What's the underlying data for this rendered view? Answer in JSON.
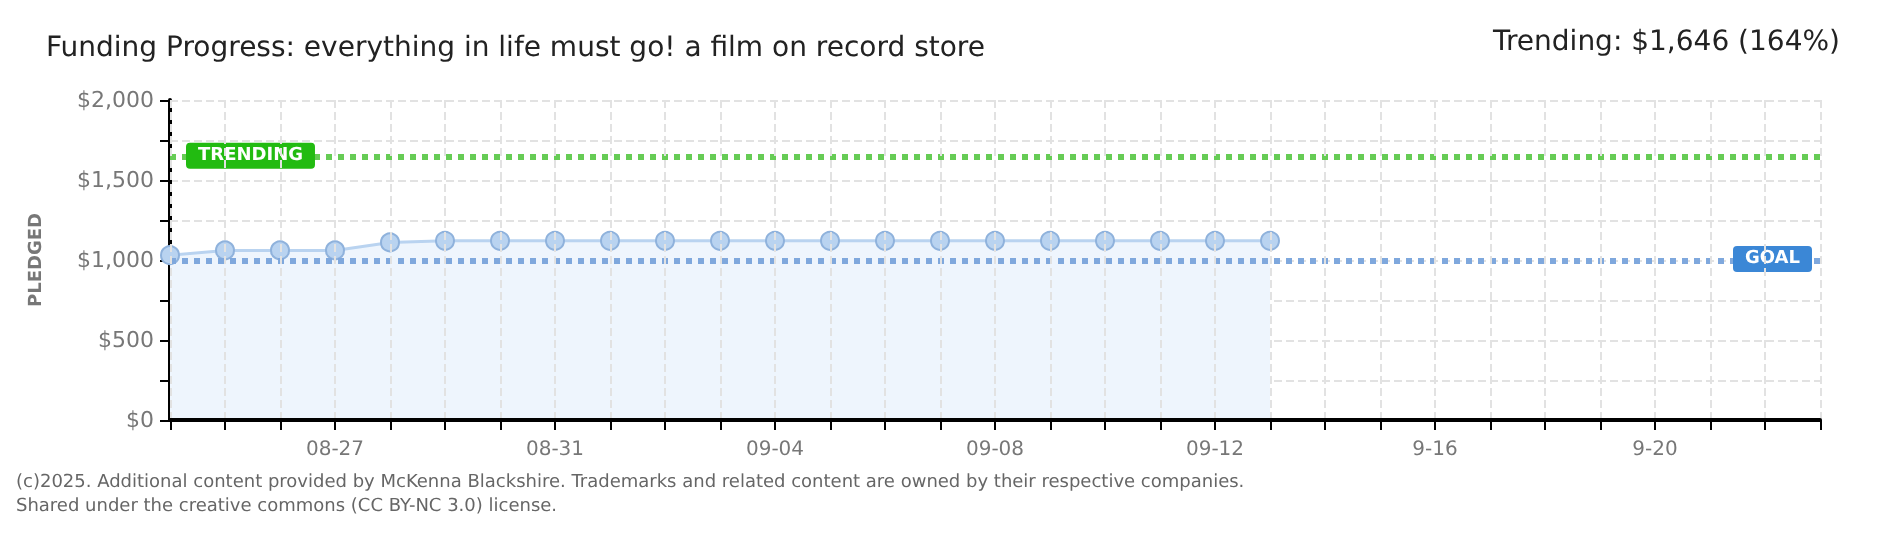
{
  "chart_data": {
    "type": "area",
    "title": "Funding Progress: everything in life must go! a film on record store",
    "ylabel": "PLEDGED",
    "annotations": [
      "Trending: $1,646 (164%)",
      "(c)2025. Additional content provided by McKenna Blackshire. Trademarks and related content are owned by their respective companies.",
      "Shared under the creative commons (CC BY-NC 3.0) license."
    ],
    "categories": [
      null,
      null,
      null,
      "08-27",
      null,
      null,
      null,
      "08-31",
      null,
      null,
      null,
      "09-04",
      null,
      null,
      null,
      "09-08",
      null,
      null,
      null,
      "09-12",
      null,
      null,
      null,
      "9-16",
      null,
      null,
      null,
      "9-20",
      null,
      null,
      null
    ],
    "series": [
      {
        "color": "#b9d3f0",
        "values": [
          1030,
          1060,
          1060,
          1060,
          1110,
          1120,
          1120,
          1120,
          1120,
          1120,
          1120,
          1120,
          1120,
          1120,
          1120,
          1120,
          1120,
          1120,
          1120,
          1120,
          1120,
          null,
          null,
          null,
          null,
          null,
          null,
          null,
          null,
          null,
          null
        ]
      }
    ],
    "ylim": [
      0,
      2000
    ],
    "yticks": [
      {
        "value": 0,
        "label": "$0"
      },
      {
        "value": 250,
        "label": null
      },
      {
        "value": 500,
        "label": "$500"
      },
      {
        "value": 750,
        "label": null
      },
      {
        "value": 1000,
        "label": "$1,000"
      },
      {
        "value": 1250,
        "label": null
      },
      {
        "value": 1500,
        "label": "$1,500"
      },
      {
        "value": 1750,
        "label": null
      },
      {
        "value": 2000,
        "label": "$2,000"
      }
    ],
    "ref_lines": [
      {
        "axis": "y",
        "value": 1646,
        "label": "TRENDING",
        "color": "#66cc55",
        "line_style": "dotted"
      },
      {
        "axis": "y",
        "value": 1000,
        "label": "GOAL",
        "color": "#7fa8dd",
        "line_style": "dotted"
      }
    ],
    "grid": true,
    "marker": "circle"
  }
}
